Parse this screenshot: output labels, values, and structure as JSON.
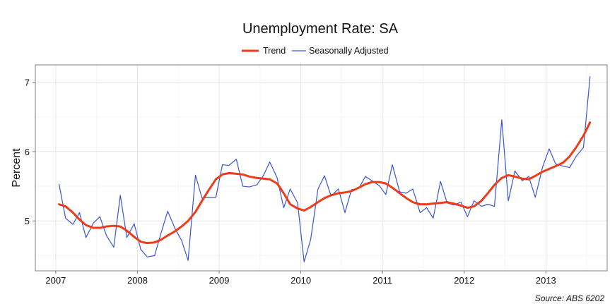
{
  "chart_data": {
    "type": "line",
    "title": "Unemployment Rate: SA",
    "xlabel": "",
    "ylabel": "Percent",
    "source": "Source: ABS 6202",
    "x_ticks": [
      2007,
      2008,
      2009,
      2010,
      2011,
      2012,
      2013
    ],
    "y_ticks": [
      5,
      6,
      7
    ],
    "xlim": [
      2006.75,
      2013.75
    ],
    "ylim": [
      4.28,
      7.25
    ],
    "grid": true,
    "legend_position": "top",
    "series": [
      {
        "name": "Trend",
        "color": "#ee3b1a",
        "line_width": 3,
        "x": [
          2007.04,
          2007.12,
          2007.21,
          2007.29,
          2007.37,
          2007.46,
          2007.54,
          2007.62,
          2007.71,
          2007.79,
          2007.87,
          2007.96,
          2008.04,
          2008.12,
          2008.21,
          2008.29,
          2008.37,
          2008.46,
          2008.54,
          2008.62,
          2008.71,
          2008.79,
          2008.87,
          2008.96,
          2009.04,
          2009.12,
          2009.21,
          2009.29,
          2009.37,
          2009.46,
          2009.54,
          2009.62,
          2009.71,
          2009.79,
          2009.87,
          2009.96,
          2010.04,
          2010.12,
          2010.21,
          2010.29,
          2010.37,
          2010.46,
          2010.54,
          2010.62,
          2010.71,
          2010.79,
          2010.87,
          2010.96,
          2011.04,
          2011.12,
          2011.21,
          2011.29,
          2011.37,
          2011.46,
          2011.54,
          2011.62,
          2011.71,
          2011.79,
          2011.87,
          2011.96,
          2012.04,
          2012.12,
          2012.21,
          2012.29,
          2012.37,
          2012.46,
          2012.54,
          2012.62,
          2012.71,
          2012.79,
          2012.87,
          2012.96,
          2013.04,
          2013.12,
          2013.21,
          2013.29,
          2013.37,
          2013.46,
          2013.54
        ],
        "y": [
          5.24,
          5.21,
          5.12,
          5.02,
          4.94,
          4.9,
          4.9,
          4.92,
          4.93,
          4.92,
          4.86,
          4.77,
          4.7,
          4.68,
          4.69,
          4.73,
          4.79,
          4.85,
          4.92,
          5.0,
          5.13,
          5.29,
          5.44,
          5.6,
          5.67,
          5.69,
          5.68,
          5.67,
          5.64,
          5.62,
          5.61,
          5.6,
          5.54,
          5.4,
          5.24,
          5.18,
          5.15,
          5.2,
          5.27,
          5.33,
          5.37,
          5.4,
          5.41,
          5.43,
          5.48,
          5.53,
          5.56,
          5.56,
          5.54,
          5.48,
          5.4,
          5.33,
          5.27,
          5.24,
          5.24,
          5.25,
          5.26,
          5.27,
          5.25,
          5.22,
          5.19,
          5.21,
          5.29,
          5.4,
          5.52,
          5.62,
          5.66,
          5.64,
          5.61,
          5.6,
          5.65,
          5.71,
          5.75,
          5.79,
          5.84,
          5.93,
          6.06,
          6.23,
          6.42
        ]
      },
      {
        "name": "Seasonally Adjusted",
        "color": "#3a53d9",
        "line_width": 1.2,
        "x": [
          2007.04,
          2007.12,
          2007.21,
          2007.29,
          2007.37,
          2007.46,
          2007.54,
          2007.62,
          2007.71,
          2007.79,
          2007.87,
          2007.96,
          2008.04,
          2008.12,
          2008.21,
          2008.29,
          2008.37,
          2008.46,
          2008.54,
          2008.62,
          2008.71,
          2008.79,
          2008.87,
          2008.96,
          2009.04,
          2009.12,
          2009.21,
          2009.29,
          2009.37,
          2009.46,
          2009.54,
          2009.62,
          2009.71,
          2009.79,
          2009.87,
          2009.96,
          2010.04,
          2010.12,
          2010.21,
          2010.29,
          2010.37,
          2010.46,
          2010.54,
          2010.62,
          2010.71,
          2010.79,
          2010.87,
          2010.96,
          2011.04,
          2011.12,
          2011.21,
          2011.29,
          2011.37,
          2011.46,
          2011.54,
          2011.62,
          2011.71,
          2011.79,
          2011.87,
          2011.96,
          2012.04,
          2012.12,
          2012.21,
          2012.29,
          2012.37,
          2012.46,
          2012.54,
          2012.62,
          2012.71,
          2012.79,
          2012.87,
          2012.96,
          2013.04,
          2013.12,
          2013.21,
          2013.29,
          2013.37,
          2013.46,
          2013.54
        ],
        "y": [
          5.53,
          5.04,
          4.95,
          5.12,
          4.76,
          4.97,
          5.06,
          4.79,
          4.62,
          5.37,
          4.76,
          4.96,
          4.59,
          4.48,
          4.5,
          4.83,
          5.14,
          4.89,
          4.72,
          4.43,
          5.66,
          5.33,
          5.34,
          5.34,
          5.81,
          5.8,
          5.89,
          5.5,
          5.49,
          5.52,
          5.65,
          5.85,
          5.62,
          5.19,
          5.46,
          5.26,
          4.41,
          4.73,
          5.46,
          5.65,
          5.36,
          5.46,
          5.12,
          5.45,
          5.47,
          5.64,
          5.58,
          5.51,
          5.38,
          5.81,
          5.42,
          5.4,
          5.46,
          5.12,
          5.19,
          5.04,
          5.57,
          5.26,
          5.23,
          5.27,
          5.06,
          5.29,
          5.21,
          5.24,
          5.21,
          6.46,
          5.29,
          5.72,
          5.58,
          5.64,
          5.34,
          5.78,
          6.04,
          5.82,
          5.79,
          5.77,
          5.93,
          6.06,
          7.08
        ]
      }
    ]
  }
}
